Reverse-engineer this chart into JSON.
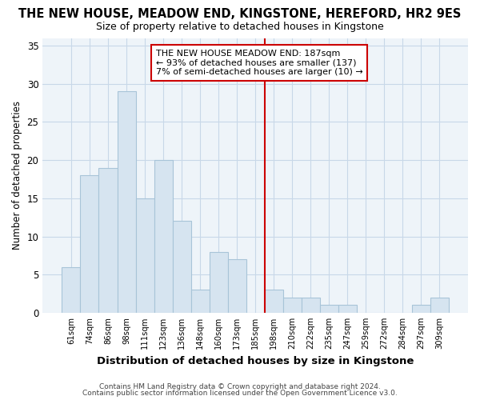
{
  "title": "THE NEW HOUSE, MEADOW END, KINGSTONE, HEREFORD, HR2 9ES",
  "subtitle": "Size of property relative to detached houses in Kingstone",
  "xlabel": "Distribution of detached houses by size in Kingstone",
  "ylabel": "Number of detached properties",
  "bar_labels": [
    "61sqm",
    "74sqm",
    "86sqm",
    "98sqm",
    "111sqm",
    "123sqm",
    "136sqm",
    "148sqm",
    "160sqm",
    "173sqm",
    "185sqm",
    "198sqm",
    "210sqm",
    "222sqm",
    "235sqm",
    "247sqm",
    "259sqm",
    "272sqm",
    "284sqm",
    "297sqm",
    "309sqm"
  ],
  "bar_heights": [
    6,
    18,
    19,
    29,
    15,
    20,
    12,
    3,
    8,
    7,
    0,
    3,
    2,
    2,
    1,
    1,
    0,
    0,
    0,
    1,
    2
  ],
  "bar_color": "#d6e4f0",
  "bar_edge_color": "#a8c4d8",
  "vline_x": 10,
  "vline_color": "#cc0000",
  "annotation_text": "THE NEW HOUSE MEADOW END: 187sqm\n← 93% of detached houses are smaller (137)\n7% of semi-detached houses are larger (10) →",
  "ylim": [
    0,
    36
  ],
  "yticks": [
    0,
    5,
    10,
    15,
    20,
    25,
    30,
    35
  ],
  "footer1": "Contains HM Land Registry data © Crown copyright and database right 2024.",
  "footer2": "Contains public sector information licensed under the Open Government Licence v3.0.",
  "bg_color": "#ffffff",
  "plot_bg_color": "#eef4f9",
  "grid_color": "#c8d8e8"
}
